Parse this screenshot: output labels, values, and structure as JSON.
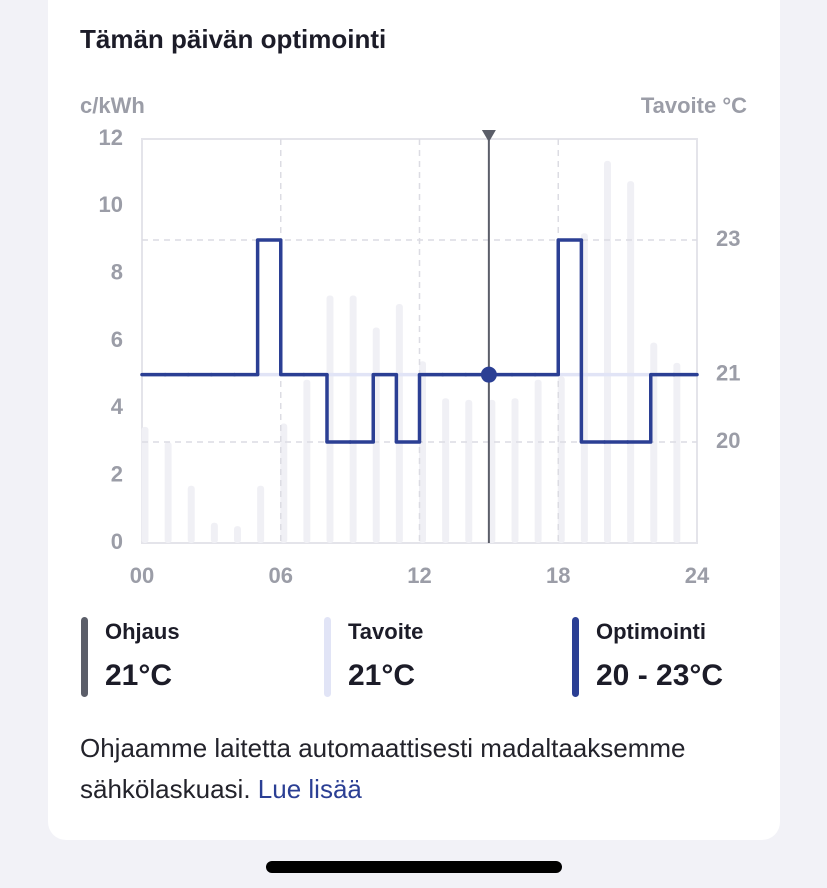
{
  "chart_data": {
    "type": "line",
    "title": "Tämän päivän optimointi",
    "ylabel": "c/kWh",
    "y2label": "Tavoite °C",
    "xlim": [
      0,
      24
    ],
    "xticks": [
      {
        "value": 0,
        "label": "00"
      },
      {
        "value": 6,
        "label": "06"
      },
      12,
      18,
      24
    ],
    "ylim": [
      0,
      12
    ],
    "yticks": [
      0,
      2,
      4,
      6,
      8,
      10,
      12
    ],
    "y2lim": [
      18.5,
      24.5
    ],
    "y2ticks": [
      23,
      21,
      20
    ],
    "grid": true,
    "price_bars": {
      "color": "#f0f0f5",
      "x": [
        0,
        1,
        2,
        3,
        4,
        5,
        6,
        7,
        8,
        9,
        10,
        11,
        12,
        13,
        14,
        15,
        16,
        17,
        18,
        19,
        20,
        21,
        22,
        23
      ],
      "values": [
        3.45,
        3.0,
        1.7,
        0.6,
        0.5,
        1.7,
        3.55,
        4.85,
        7.35,
        7.35,
        6.4,
        7.1,
        5.4,
        4.3,
        4.25,
        4.25,
        4.3,
        4.85,
        4.95,
        9.2,
        11.35,
        10.75,
        5.95,
        5.35
      ]
    },
    "marker_x": 15,
    "series": [
      {
        "name": "Ohjaus",
        "color": "#5b5e69",
        "label": "21°C"
      },
      {
        "name": "Tavoite",
        "color": "#e1e4f6",
        "label": "21°C",
        "axis": "y2",
        "x": [
          0,
          24
        ],
        "values": [
          21,
          21
        ]
      },
      {
        "name": "Optimointi",
        "color": "#2b3f94",
        "label": "20 - 23°C",
        "axis": "y2",
        "step": true,
        "x": [
          0,
          1,
          2,
          3,
          4,
          5,
          6,
          7,
          8,
          9,
          10,
          11,
          12,
          13,
          14,
          15,
          16,
          17,
          18,
          19,
          20,
          21,
          22,
          23
        ],
        "values": [
          21,
          21,
          21,
          21,
          21,
          23,
          21,
          21,
          20,
          20,
          21,
          20,
          21,
          21,
          21,
          21,
          21,
          21,
          23,
          20,
          20,
          20,
          21,
          21
        ]
      }
    ]
  },
  "footer": {
    "text": "Ohjaamme laitetta automaattisesti madaltaaksemme sähkölaskuasi.",
    "link": "Lue lisää"
  }
}
